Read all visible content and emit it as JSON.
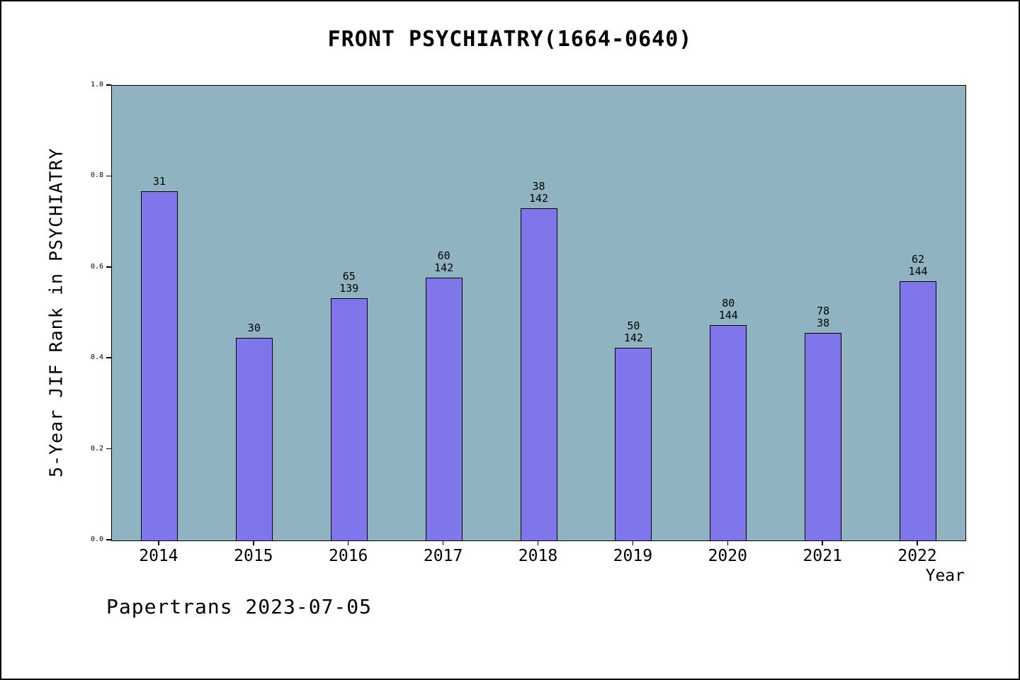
{
  "chart_data": {
    "type": "bar",
    "title": "FRONT PSYCHIATRY(1664-0640)",
    "xlabel": "Year",
    "ylabel": "5-Year JIF Rank in PSYCHIATRY",
    "ylim": [
      0.0,
      1.0
    ],
    "yticks": [
      "0.0",
      "0.2",
      "0.4",
      "0.6",
      "0.8",
      "1.0"
    ],
    "categories": [
      "2014",
      "2015",
      "2016",
      "2017",
      "2018",
      "2019",
      "2020",
      "2021",
      "2022"
    ],
    "values": [
      0.768,
      0.445,
      0.533,
      0.578,
      0.731,
      0.424,
      0.473,
      0.457,
      0.57
    ],
    "bar_labels": [
      [
        "31"
      ],
      [
        "30"
      ],
      [
        "65",
        "139"
      ],
      [
        "60",
        "142"
      ],
      [
        "38",
        "142"
      ],
      [
        "50",
        "142"
      ],
      [
        "80",
        "144"
      ],
      [
        "78",
        "38"
      ],
      [
        "62",
        "144"
      ]
    ],
    "colors": {
      "bar": "#7E76EA",
      "plot_background": "#8FB3C0"
    },
    "legend": "none",
    "grid": "off"
  },
  "footer": {
    "note": "Papertrans 2023-07-05"
  }
}
